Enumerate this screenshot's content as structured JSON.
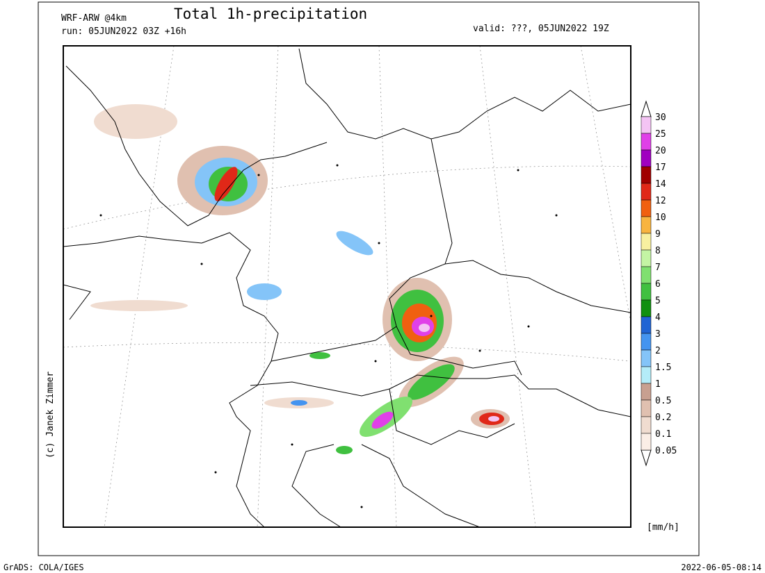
{
  "header": {
    "model": "WRF-ARW @4km",
    "run": "run: 05JUN2022 03Z +16h",
    "title": "Total 1h-precipitation",
    "valid": "valid: ???, 05JUN2022 19Z"
  },
  "legend": {
    "labels": [
      "30",
      "25",
      "20",
      "17",
      "14",
      "12",
      "10",
      "9",
      "8",
      "7",
      "6",
      "5",
      "4",
      "3",
      "2",
      "1.5",
      "1",
      "0.5",
      "0.2",
      "0.1",
      "0.05"
    ],
    "colors": [
      "#f4c4f4",
      "#e040e8",
      "#a000c0",
      "#a00000",
      "#e02818",
      "#f06010",
      "#f8b440",
      "#f8f0a0",
      "#c4f4a4",
      "#80e070",
      "#40c040",
      "#109010",
      "#2064d4",
      "#4494f0",
      "#84c4f8",
      "#b4ecf8",
      "#c8a090",
      "#e0c0b0",
      "#f0dcd0",
      "#fbeee6"
    ],
    "unit": "[mm/h]"
  },
  "credit": "(c) Janek Zimmer",
  "footer": {
    "left": "GrADS: COLA/IGES",
    "right": "2022-06-05-08:14"
  }
}
